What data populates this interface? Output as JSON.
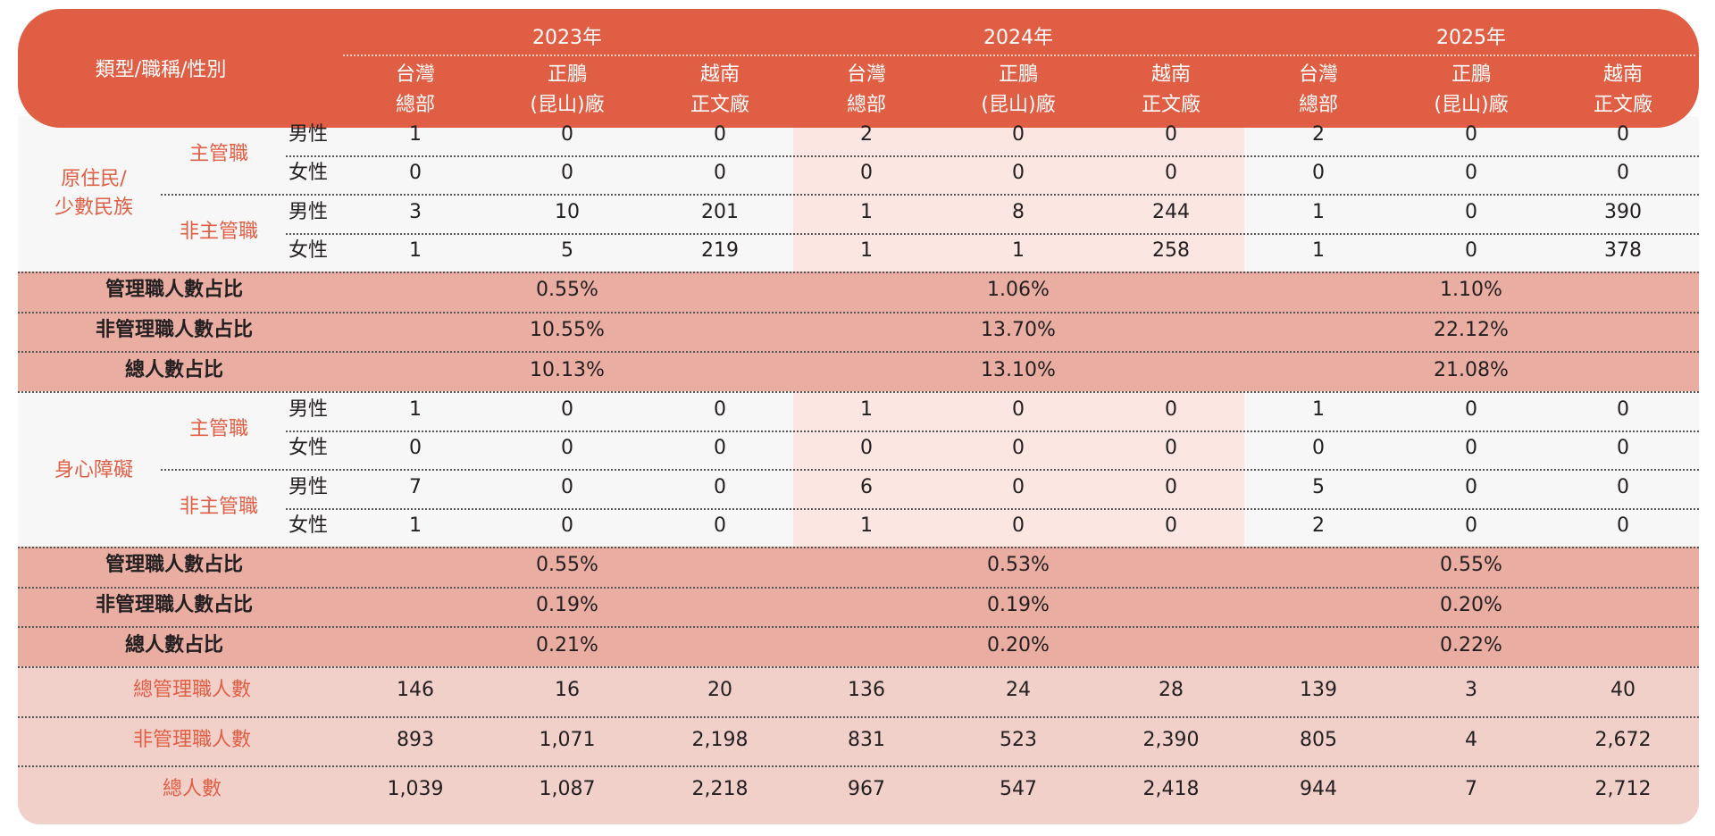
{
  "header": {
    "corner": "類型/職稱/性別",
    "years": [
      "2023年",
      "2024年",
      "2025年"
    ],
    "plants": [
      {
        "line1": "台灣",
        "line2": "總部"
      },
      {
        "line1": "正鵬",
        "line2": "(昆山)廠"
      },
      {
        "line1": "越南",
        "line2": "正文廠"
      }
    ]
  },
  "sections": [
    {
      "group": "原住民/\n少數民族",
      "subgroups": [
        {
          "label": "主管職",
          "rows": [
            {
              "gender": "男性",
              "values": [
                "1",
                "0",
                "0",
                "2",
                "0",
                "0",
                "2",
                "0",
                "0"
              ]
            },
            {
              "gender": "女性",
              "values": [
                "0",
                "0",
                "0",
                "0",
                "0",
                "0",
                "0",
                "0",
                "0"
              ]
            }
          ]
        },
        {
          "label": "非主管職",
          "rows": [
            {
              "gender": "男性",
              "values": [
                "3",
                "10",
                "201",
                "1",
                "8",
                "244",
                "1",
                "0",
                "390"
              ]
            },
            {
              "gender": "女性",
              "values": [
                "1",
                "5",
                "219",
                "1",
                "1",
                "258",
                "1",
                "0",
                "378"
              ]
            }
          ]
        }
      ],
      "ratios": [
        {
          "label": "管理職人數占比",
          "values": [
            "0.55%",
            "1.06%",
            "1.10%"
          ]
        },
        {
          "label": "非管理職人數占比",
          "values": [
            "10.55%",
            "13.70%",
            "22.12%"
          ]
        },
        {
          "label": "總人數占比",
          "values": [
            "10.13%",
            "13.10%",
            "21.08%"
          ]
        }
      ]
    },
    {
      "group": "身心障礙",
      "subgroups": [
        {
          "label": "主管職",
          "rows": [
            {
              "gender": "男性",
              "values": [
                "1",
                "0",
                "0",
                "1",
                "0",
                "0",
                "1",
                "0",
                "0"
              ]
            },
            {
              "gender": "女性",
              "values": [
                "0",
                "0",
                "0",
                "0",
                "0",
                "0",
                "0",
                "0",
                "0"
              ]
            }
          ]
        },
        {
          "label": "非主管職",
          "rows": [
            {
              "gender": "男性",
              "values": [
                "7",
                "0",
                "0",
                "6",
                "0",
                "0",
                "5",
                "0",
                "0"
              ]
            },
            {
              "gender": "女性",
              "values": [
                "1",
                "0",
                "0",
                "1",
                "0",
                "0",
                "2",
                "0",
                "0"
              ]
            }
          ]
        }
      ],
      "ratios": [
        {
          "label": "管理職人數占比",
          "values": [
            "0.55%",
            "0.53%",
            "0.55%"
          ]
        },
        {
          "label": "非管理職人數占比",
          "values": [
            "0.19%",
            "0.19%",
            "0.20%"
          ]
        },
        {
          "label": "總人數占比",
          "values": [
            "0.21%",
            "0.20%",
            "0.22%"
          ]
        }
      ]
    }
  ],
  "totals": [
    {
      "label": "總管理職人數",
      "values": [
        "146",
        "16",
        "20",
        "136",
        "24",
        "28",
        "139",
        "3",
        "40"
      ]
    },
    {
      "label": "非管理職人數",
      "values": [
        "893",
        "1,071",
        "2,198",
        "831",
        "523",
        "2,390",
        "805",
        "4",
        "2,672"
      ]
    },
    {
      "label": "總人數",
      "values": [
        "1,039",
        "1,087",
        "2,218",
        "967",
        "547",
        "2,418",
        "944",
        "7",
        "2,712"
      ]
    }
  ],
  "colors": {
    "header": "#e05e44",
    "accent": "#e05e44",
    "ratio_band": "#e9ada2",
    "total_band": "#f2d0ca",
    "highlight": "#fbe6e2"
  }
}
